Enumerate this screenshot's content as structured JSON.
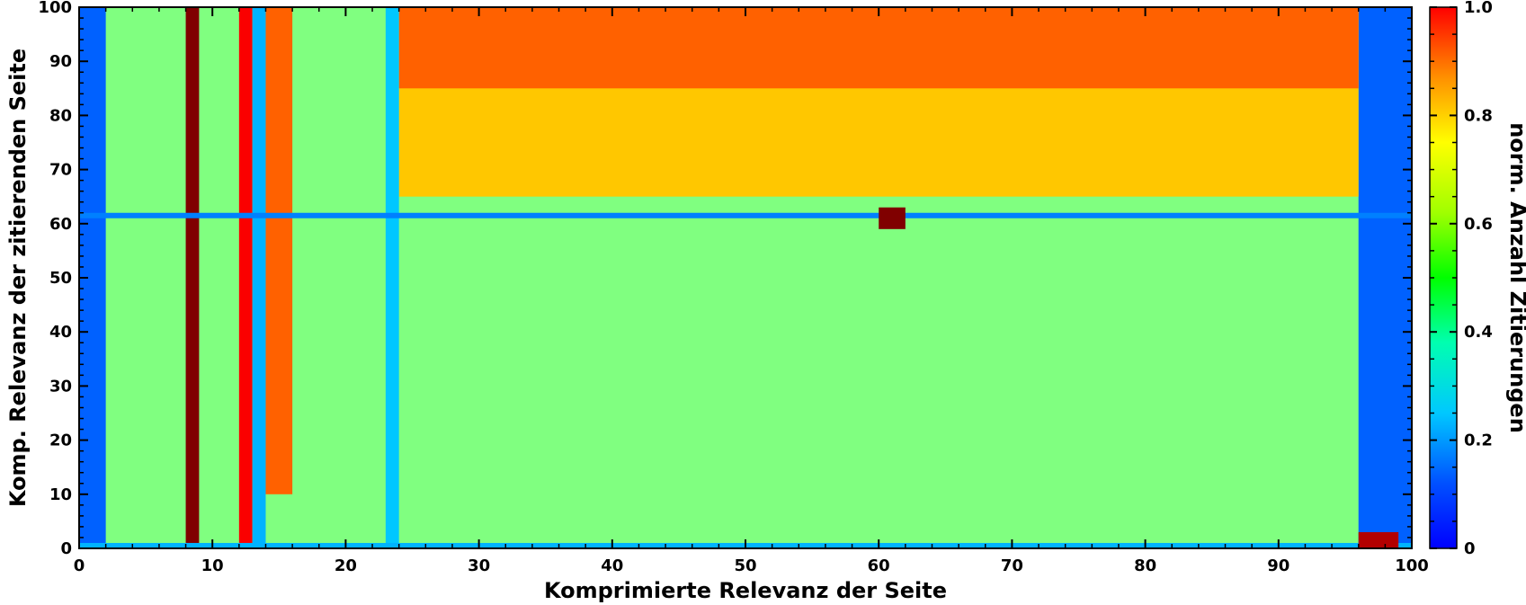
{
  "chart_data": {
    "type": "heatmap",
    "xlabel": "Komprimierte Relevanz der Seite",
    "ylabel": "Komp. Relevanz der zitierenden Seite",
    "colorbar_label": "norm. Anzahl Zitierungen",
    "xlim": [
      0,
      100
    ],
    "ylim": [
      0,
      100
    ],
    "clim": [
      0,
      1
    ],
    "x_ticks": [
      0,
      10,
      20,
      30,
      40,
      50,
      60,
      70,
      80,
      90,
      100
    ],
    "y_ticks": [
      0,
      10,
      20,
      30,
      40,
      50,
      60,
      70,
      80,
      90,
      100
    ],
    "colorbar_ticks": [
      "0",
      "0.2",
      "0.4",
      "0.6",
      "0.8",
      "1.0"
    ],
    "colormap": "jet",
    "grid": false,
    "colorbar_position": "right",
    "regions": [
      {
        "name": "bulk",
        "x": [
          0,
          100
        ],
        "y": [
          0,
          100
        ],
        "value": 0.5
      },
      {
        "name": "low-x-edge",
        "x": [
          0,
          2
        ],
        "y": [
          0,
          100
        ],
        "value": 0.22
      },
      {
        "name": "high-x-edge",
        "x": [
          96,
          100
        ],
        "y": [
          0,
          100
        ],
        "value": 0.22
      },
      {
        "name": "top-band",
        "x": [
          24,
          96
        ],
        "y": [
          65,
          100
        ],
        "value": 0.68
      },
      {
        "name": "very-top",
        "x": [
          24,
          96
        ],
        "y": [
          85,
          100
        ],
        "value": 0.78
      },
      {
        "name": "vertical-stripe-8-9",
        "x": [
          8,
          9
        ],
        "y": [
          1,
          100
        ],
        "value": 1.0
      },
      {
        "name": "vertical-stripe-12-13",
        "x": [
          12,
          13
        ],
        "y": [
          1,
          100
        ],
        "value": 0.88
      },
      {
        "name": "band-14-16",
        "x": [
          14,
          16
        ],
        "y": [
          10,
          100
        ],
        "value": 0.78
      },
      {
        "name": "cyan-stripe-13-14",
        "x": [
          13,
          14
        ],
        "y": [
          0,
          100
        ],
        "value": 0.3
      },
      {
        "name": "cyan-stripe-23-24",
        "x": [
          23,
          24
        ],
        "y": [
          0,
          100
        ],
        "value": 0.32
      },
      {
        "name": "horizontal-row-61",
        "x": [
          0,
          100
        ],
        "y": [
          61,
          62
        ],
        "value": 0.25
      },
      {
        "name": "hot-spot-61-62",
        "x": [
          60,
          62
        ],
        "y": [
          59,
          63
        ],
        "value": 1.0
      },
      {
        "name": "bottom-row-0-1",
        "x": [
          0,
          100
        ],
        "y": [
          0,
          1
        ],
        "value": 0.3
      },
      {
        "name": "bottom-right-corner",
        "x": [
          96,
          99
        ],
        "y": [
          0,
          3
        ],
        "value": 0.95
      }
    ]
  }
}
